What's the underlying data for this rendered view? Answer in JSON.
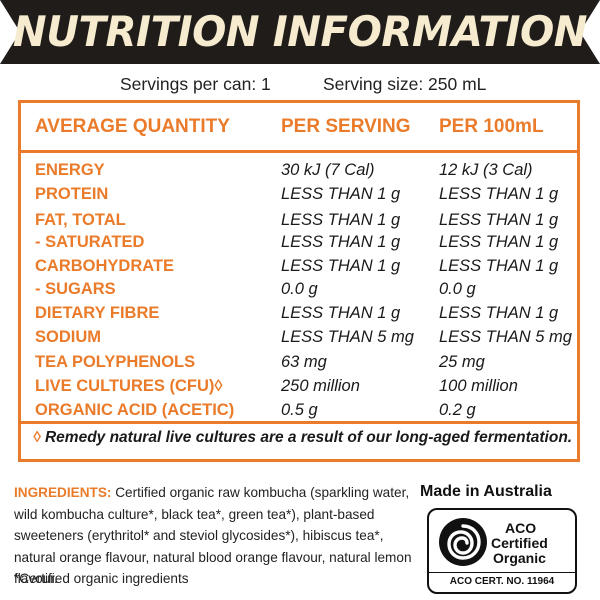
{
  "banner": {
    "title": "NUTRITION INFORMATION"
  },
  "serving": {
    "per_can": "Servings per can: 1",
    "size": "Serving size: 250 mL"
  },
  "table": {
    "headers": [
      "AVERAGE QUANTITY",
      "PER SERVING",
      "PER 100mL"
    ],
    "rows": [
      {
        "name": "ENERGY",
        "per_serving": "30 kJ (7 Cal)",
        "per_100ml": "12 kJ (3 Cal)"
      },
      {
        "name": "PROTEIN",
        "per_serving": "LESS THAN 1 g",
        "per_100ml": "LESS THAN 1 g"
      },
      {
        "name": "FAT, TOTAL",
        "per_serving": "LESS THAN 1 g",
        "per_100ml": "LESS THAN 1 g"
      },
      {
        "name": " - SATURATED",
        "per_serving": "LESS THAN 1 g",
        "per_100ml": "LESS THAN 1 g"
      },
      {
        "name": "CARBOHYDRATE",
        "per_serving": "LESS THAN 1 g",
        "per_100ml": "LESS THAN 1 g"
      },
      {
        "name": " - SUGARS",
        "per_serving": "0.0 g",
        "per_100ml": "0.0 g"
      },
      {
        "name": "DIETARY FIBRE",
        "per_serving": "LESS THAN 1 g",
        "per_100ml": "LESS THAN 1 g"
      },
      {
        "name": "SODIUM",
        "per_serving": "LESS THAN 5 mg",
        "per_100ml": "LESS THAN 5 mg"
      },
      {
        "name": "TEA POLYPHENOLS",
        "per_serving": "63 mg",
        "per_100ml": "25 mg"
      },
      {
        "name": "LIVE CULTURES (CFU)◊",
        "per_serving": "250 million",
        "per_100ml": "100 million"
      },
      {
        "name": "ORGANIC ACID (ACETIC)",
        "per_serving": "0.5 g",
        "per_100ml": "0.2 g"
      }
    ],
    "footnote_mark": "◊",
    "footnote": " Remedy natural live cultures are a result of our long-aged fermentation."
  },
  "ingredients": {
    "label": "INGREDIENTS:",
    "text": " Certified organic raw kombucha (sparkling water, wild kombucha culture*, black tea*, green tea*), plant-based sweeteners (erythritol* and steviol glycosides*), hibiscus tea*, natural orange flavour, natural blood orange flavour, natural lemon flavour."
  },
  "certified_note": "*Certified organic ingredients",
  "made_in": "Made in Australia",
  "aco": {
    "line1": "ACO",
    "line2": "Certified",
    "line3": "Organic",
    "cert": "ACO CERT. NO. 11964",
    "logo_icon": "aco-bud-logo-icon"
  },
  "colors": {
    "accent": "#ea7b2a",
    "banner": "#1f1c1a",
    "banner_text": "#f7ebcf"
  }
}
